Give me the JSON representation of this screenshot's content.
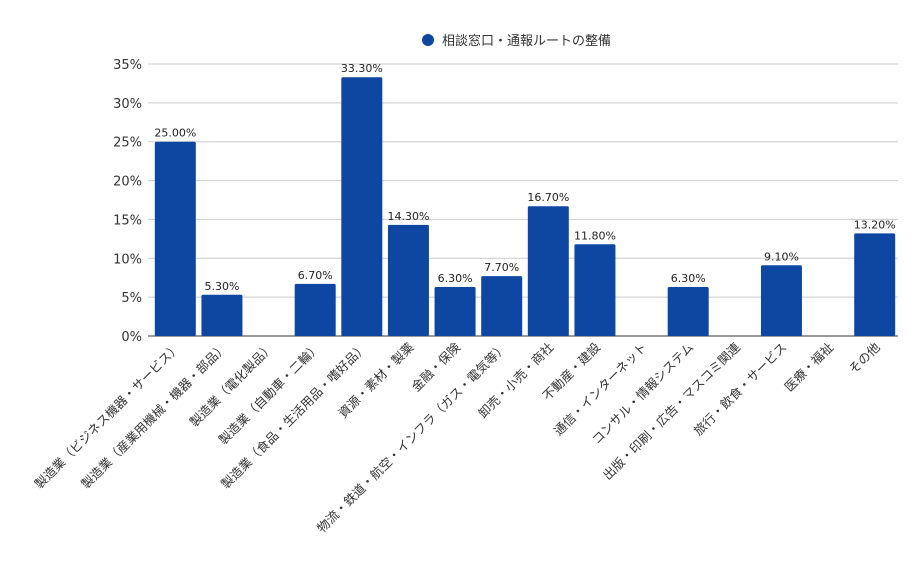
{
  "chart_data": {
    "type": "bar",
    "title": "",
    "xlabel": "",
    "ylabel": "",
    "legend_position": "top-center",
    "grid": true,
    "ylim": [
      0,
      35
    ],
    "yticks": [
      "0%",
      "5%",
      "10%",
      "15%",
      "20%",
      "25%",
      "30%",
      "35%"
    ],
    "series": [
      {
        "name": "相談窓口・通報ルートの整備",
        "color": "#0d47a1",
        "values": [
          25.0,
          5.3,
          null,
          6.7,
          33.3,
          14.3,
          6.3,
          7.7,
          16.7,
          11.8,
          null,
          6.3,
          null,
          9.1,
          null,
          13.2
        ],
        "labels": [
          "25.00%",
          "5.30%",
          "",
          "6.70%",
          "33.30%",
          "14.30%",
          "6.30%",
          "7.70%",
          "16.70%",
          "11.80%",
          "",
          "6.30%",
          "",
          "9.10%",
          "",
          "13.20%"
        ]
      }
    ],
    "categories": [
      "製造業（ビジネス機器・サービス）",
      "製造業（産業用機械・機器・部品）",
      "製造業（電化製品）",
      "製造業（自動車・二輪）",
      "製造業（食品・生活用品・嗜好品）",
      "資源・素材・製薬",
      "金融・保険",
      "物流・鉄道・航空・インフラ（ガス・電気等）",
      "卸売・小売・商社",
      "不動産・建設",
      "通信・インターネット",
      "コンサル・情報システム",
      "出版・印刷・広告・マスコミ関連",
      "旅行・飲食・サービス",
      "医療・福祉",
      "その他"
    ]
  }
}
